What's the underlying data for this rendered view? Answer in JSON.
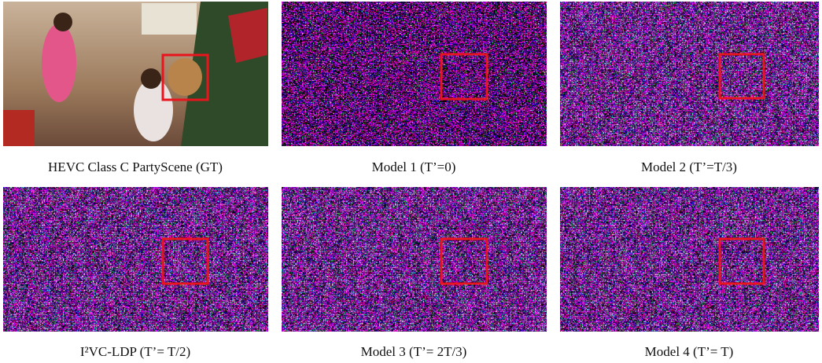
{
  "panels": [
    {
      "caption": "HEVC Class C PartyScene (GT)"
    },
    {
      "caption": "Model 1 (T’=0)"
    },
    {
      "caption": "Model 2 (T’=T/3)"
    },
    {
      "caption": "I²VC-LDP (T’= T/2)"
    },
    {
      "caption": "Model 3 (T’= 2T/3)"
    },
    {
      "caption": "Model 4 (T’= T)"
    }
  ]
}
